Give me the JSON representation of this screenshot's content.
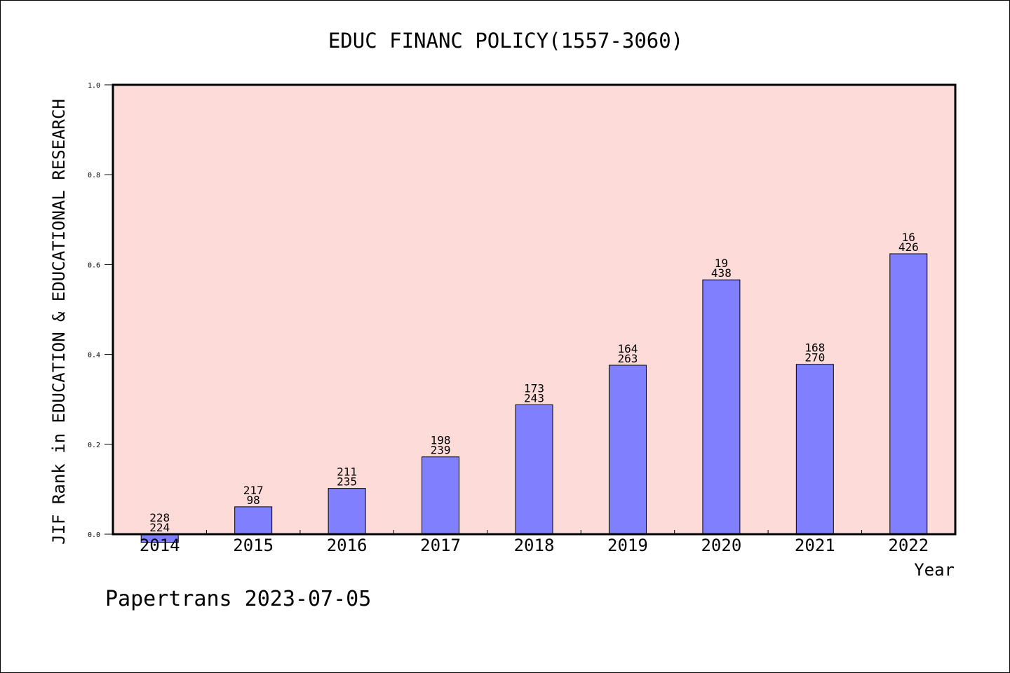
{
  "chart_data": {
    "type": "bar",
    "title": "EDUC FINANC POLICY(1557-3060)",
    "xlabel": "Year",
    "ylabel": "JIF Rank in EDUCATION & EDUCATIONAL RESEARCH",
    "categories": [
      "2014",
      "2015",
      "2016",
      "2017",
      "2018",
      "2019",
      "2020",
      "2021",
      "2022"
    ],
    "values": [
      -0.018,
      0.061,
      0.102,
      0.172,
      0.288,
      0.376,
      0.566,
      0.378,
      0.624
    ],
    "label_top": [
      "228",
      "217",
      "211",
      "198",
      "173",
      "164",
      "19",
      "168",
      "16"
    ],
    "label_bottom": [
      "224",
      "98",
      "235",
      "239",
      "243",
      "263",
      "438",
      "270",
      "426"
    ],
    "ylim": [
      0,
      1.0
    ],
    "yticks": [
      "0.0",
      "0.2",
      "0.4",
      "0.6",
      "0.8",
      "1.0"
    ],
    "grid": false,
    "colors": {
      "plot_background": "#fddbd8",
      "bar_fill": "#8080ff",
      "bar_stroke": "#000000"
    }
  },
  "footer": {
    "credit": "Papertrans 2023-07-05"
  }
}
